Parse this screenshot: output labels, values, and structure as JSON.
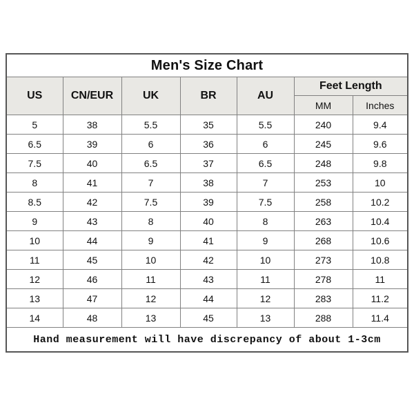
{
  "chart_data": {
    "type": "table",
    "title": "Men's Size Chart",
    "column_groups": {
      "feet_length_label": "Feet Length"
    },
    "columns": [
      "US",
      "CN/EUR",
      "UK",
      "BR",
      "AU",
      "MM",
      "Inches"
    ],
    "rows": [
      [
        "5",
        "38",
        "5.5",
        "35",
        "5.5",
        "240",
        "9.4"
      ],
      [
        "6.5",
        "39",
        "6",
        "36",
        "6",
        "245",
        "9.6"
      ],
      [
        "7.5",
        "40",
        "6.5",
        "37",
        "6.5",
        "248",
        "9.8"
      ],
      [
        "8",
        "41",
        "7",
        "38",
        "7",
        "253",
        "10"
      ],
      [
        "8.5",
        "42",
        "7.5",
        "39",
        "7.5",
        "258",
        "10.2"
      ],
      [
        "9",
        "43",
        "8",
        "40",
        "8",
        "263",
        "10.4"
      ],
      [
        "10",
        "44",
        "9",
        "41",
        "9",
        "268",
        "10.6"
      ],
      [
        "11",
        "45",
        "10",
        "42",
        "10",
        "273",
        "10.8"
      ],
      [
        "12",
        "46",
        "11",
        "43",
        "11",
        "278",
        "11"
      ],
      [
        "13",
        "47",
        "12",
        "44",
        "12",
        "283",
        "11.2"
      ],
      [
        "14",
        "48",
        "13",
        "45",
        "13",
        "288",
        "11.4"
      ]
    ],
    "footnote": "Hand measurement will have discrepancy of about 1-3cm",
    "colors": {
      "header_bg": "#e9e8e4",
      "grid_line": "#808080",
      "outer_border": "#555555",
      "text": "#111111",
      "page_bg": "#ffffff"
    }
  }
}
